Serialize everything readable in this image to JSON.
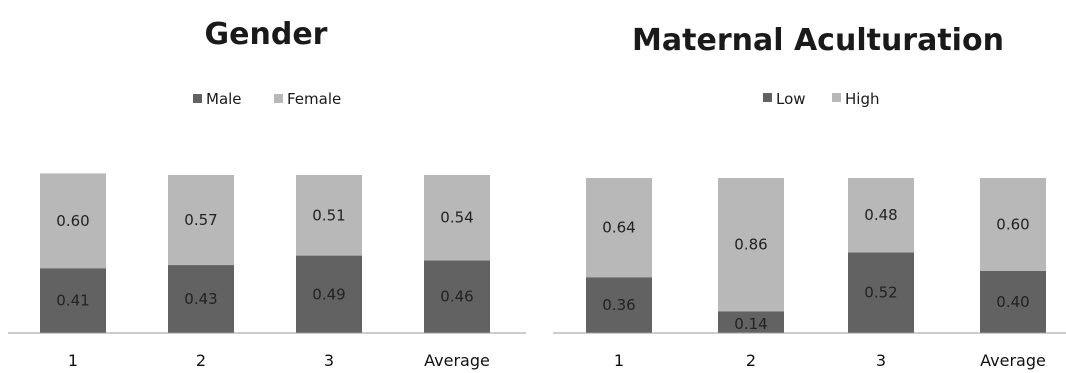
{
  "colors": {
    "dark": "#626262",
    "light": "#b8b8b8",
    "axis": "#999999"
  },
  "chart_data": [
    {
      "type": "bar",
      "stacked": true,
      "title": "Gender",
      "legend_position": "top",
      "categories": [
        "1",
        "2",
        "3",
        "Average"
      ],
      "series": [
        {
          "name": "Male",
          "color": "#626262",
          "values": [
            0.41,
            0.43,
            0.49,
            0.46
          ],
          "labels": [
            "0.41",
            "0.43",
            "0.49",
            "0.46"
          ]
        },
        {
          "name": "Female",
          "color": "#b8b8b8",
          "values": [
            0.6,
            0.57,
            0.51,
            0.54
          ],
          "labels": [
            "0.60",
            "0.57",
            "0.51",
            "0.54"
          ]
        }
      ],
      "grid": false
    },
    {
      "type": "bar",
      "stacked": true,
      "title": "Maternal Aculturation",
      "legend_position": "top",
      "categories": [
        "1",
        "2",
        "3",
        "Average"
      ],
      "series": [
        {
          "name": "Low",
          "color": "#626262",
          "values": [
            0.36,
            0.14,
            0.52,
            0.4
          ],
          "labels": [
            "0.36",
            "0.14",
            "0.52",
            "0.40"
          ]
        },
        {
          "name": "High",
          "color": "#b8b8b8",
          "values": [
            0.64,
            0.86,
            0.48,
            0.6
          ],
          "labels": [
            "0.64",
            "0.86",
            "0.48",
            "0.60"
          ]
        }
      ],
      "grid": false
    }
  ]
}
